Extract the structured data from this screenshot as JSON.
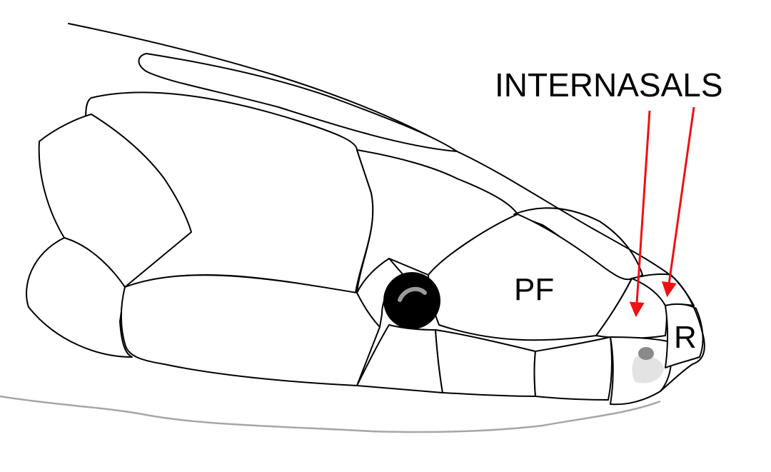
{
  "labels": {
    "internasals": "INTERNASALS",
    "prefrontal": "PF",
    "rostral": "R"
  },
  "colors": {
    "arrow": "#ee1111",
    "outline": "#000000",
    "jaw_line": "#a6a6a6",
    "nostril_patch": "#e3e3e3",
    "nostril": "#8a8a8a",
    "eye": "#000000"
  }
}
